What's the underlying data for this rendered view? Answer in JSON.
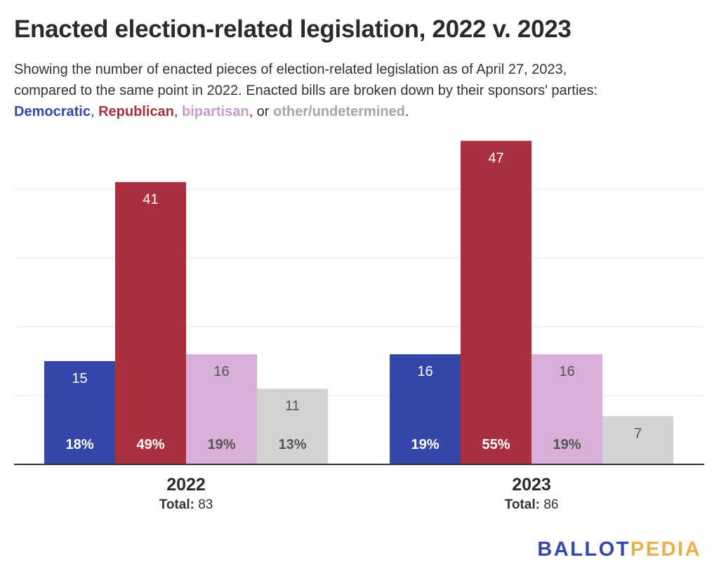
{
  "title": "Enacted election-related legislation, 2022 v. 2023",
  "subtitle": {
    "line1": "Showing the number of enacted pieces of election-related legislation as of April 27, 2023,",
    "line2": "compared to the same point in 2022. Enacted bills are broken down by their sponsors' parties:",
    "dem": "Democratic",
    "sep1": ", ",
    "rep": "Republican",
    "sep2": ", ",
    "bip": "bipartisan",
    "sep3": ", or ",
    "oth": "other/undetermined",
    "end": "."
  },
  "colors": {
    "democratic": "#3547a8",
    "republican": "#a8303f",
    "bipartisan": "#d7afd9",
    "other": "#d3d3d3",
    "grid": "#e6e6e6",
    "axis": "#333333"
  },
  "chart_data": {
    "type": "bar",
    "categories": [
      "2022",
      "2023"
    ],
    "totals_label": "Total:",
    "totals": [
      83,
      86
    ],
    "ylim": [
      0,
      50
    ],
    "grid": true,
    "series": [
      {
        "name": "Democratic",
        "key": "democratic",
        "values": [
          15,
          16
        ],
        "percents": [
          "18%",
          "19%"
        ]
      },
      {
        "name": "Republican",
        "key": "republican",
        "values": [
          41,
          47
        ],
        "percents": [
          "49%",
          "55%"
        ]
      },
      {
        "name": "bipartisan",
        "key": "bipartisan",
        "values": [
          16,
          16
        ],
        "percents": [
          "19%",
          "19%"
        ]
      },
      {
        "name": "other/undetermined",
        "key": "other",
        "values": [
          11,
          7
        ],
        "percents": [
          "13%",
          ""
        ]
      }
    ]
  },
  "logo": {
    "part1": "BALLOT",
    "part2": "PEDIA"
  }
}
